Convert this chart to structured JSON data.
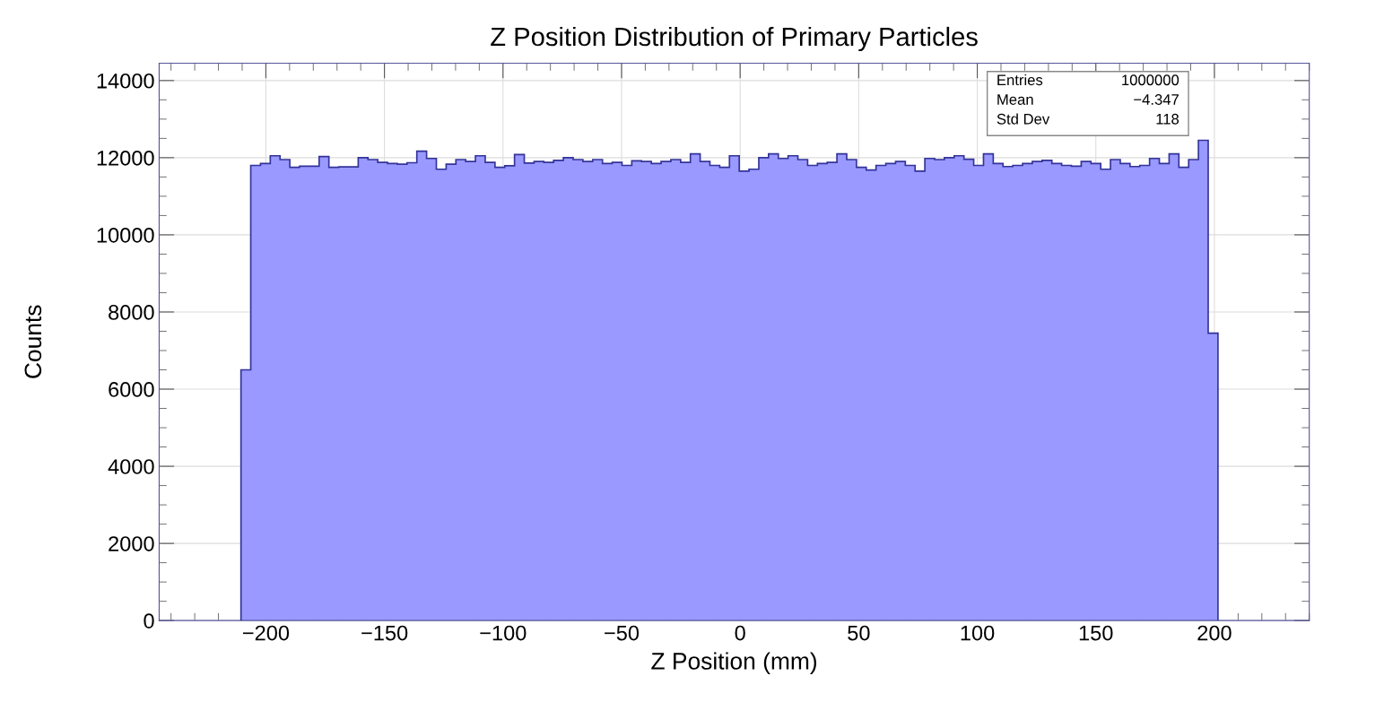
{
  "chart_data": {
    "type": "histogram",
    "title": "Z Position Distribution of Primary Particles",
    "xlabel": "Z Position (mm)",
    "ylabel": "Counts",
    "bins": [
      -210.5,
      -206.38,
      -202.26,
      -198.14,
      -194.02,
      -189.9,
      -185.78,
      -181.66,
      -177.54,
      -173.42,
      -169.3,
      -165.18,
      -161.06,
      -156.94,
      -152.82,
      -148.7,
      -144.58,
      -140.46,
      -136.34,
      -132.22,
      -128.1,
      -123.98,
      -119.86,
      -115.74,
      -111.62,
      -107.5,
      -103.38,
      -99.26,
      -95.14,
      -91.02,
      -86.9,
      -82.78,
      -78.66,
      -74.54,
      -70.42,
      -66.3,
      -62.18,
      -58.06,
      -53.94,
      -49.82,
      -45.7,
      -41.58,
      -37.46,
      -33.34,
      -29.22,
      -25.1,
      -20.98,
      -16.86,
      -12.74,
      -8.62,
      -4.5,
      -0.38,
      3.74,
      7.86,
      11.98,
      16.1,
      20.22,
      24.34,
      28.46,
      32.58,
      36.7,
      40.82,
      44.94,
      49.06,
      53.18,
      57.3,
      61.42,
      65.54,
      69.66,
      73.78,
      77.9,
      82.02,
      86.14,
      90.26,
      94.38,
      98.5,
      102.62,
      106.74,
      110.86,
      114.98,
      119.1,
      123.22,
      127.34,
      131.46,
      135.58,
      139.7,
      143.82,
      147.94,
      152.06,
      156.18,
      160.3,
      164.42,
      168.54,
      172.66,
      176.78,
      180.9,
      185.02,
      189.14,
      193.26,
      197.38,
      201.5
    ],
    "values": [
      6500,
      11800,
      11850,
      12050,
      11950,
      11750,
      11780,
      11780,
      12030,
      11750,
      11760,
      11760,
      12000,
      11950,
      11880,
      11850,
      11830,
      11870,
      12170,
      11980,
      11700,
      11830,
      11950,
      11900,
      12050,
      11880,
      11750,
      11790,
      12080,
      11860,
      11900,
      11880,
      11930,
      12000,
      11950,
      11900,
      11950,
      11850,
      11880,
      11800,
      11920,
      11900,
      11850,
      11900,
      11950,
      11880,
      12100,
      11900,
      11800,
      11750,
      12050,
      11650,
      11700,
      12000,
      12100,
      11980,
      12050,
      11950,
      11800,
      11850,
      11880,
      12100,
      11950,
      11750,
      11680,
      11800,
      11850,
      11900,
      11800,
      11650,
      11980,
      11950,
      12000,
      12050,
      11960,
      11800,
      12100,
      11850,
      11770,
      11800,
      11850,
      11900,
      11930,
      11850,
      11800,
      11780,
      11900,
      11850,
      11700,
      11950,
      11850,
      11770,
      11800,
      11980,
      11850,
      12100,
      11750,
      11950,
      12450,
      7450
    ],
    "color": "#9999ff",
    "xlim": [
      -245,
      240
    ],
    "ylim": [
      0,
      14450
    ],
    "xticks": [
      {
        "value": -200,
        "label": "−200"
      },
      {
        "value": -150,
        "label": "−150"
      },
      {
        "value": -100,
        "label": "−100"
      },
      {
        "value": -50,
        "label": "−50"
      },
      0,
      50,
      100,
      150,
      200
    ],
    "yticks": [
      0,
      2000,
      4000,
      6000,
      8000,
      10000,
      12000,
      14000
    ],
    "grid": true,
    "annotations": [
      "Entries",
      "1000000",
      "Mean",
      "−4.347",
      "Std Dev",
      "118"
    ]
  }
}
